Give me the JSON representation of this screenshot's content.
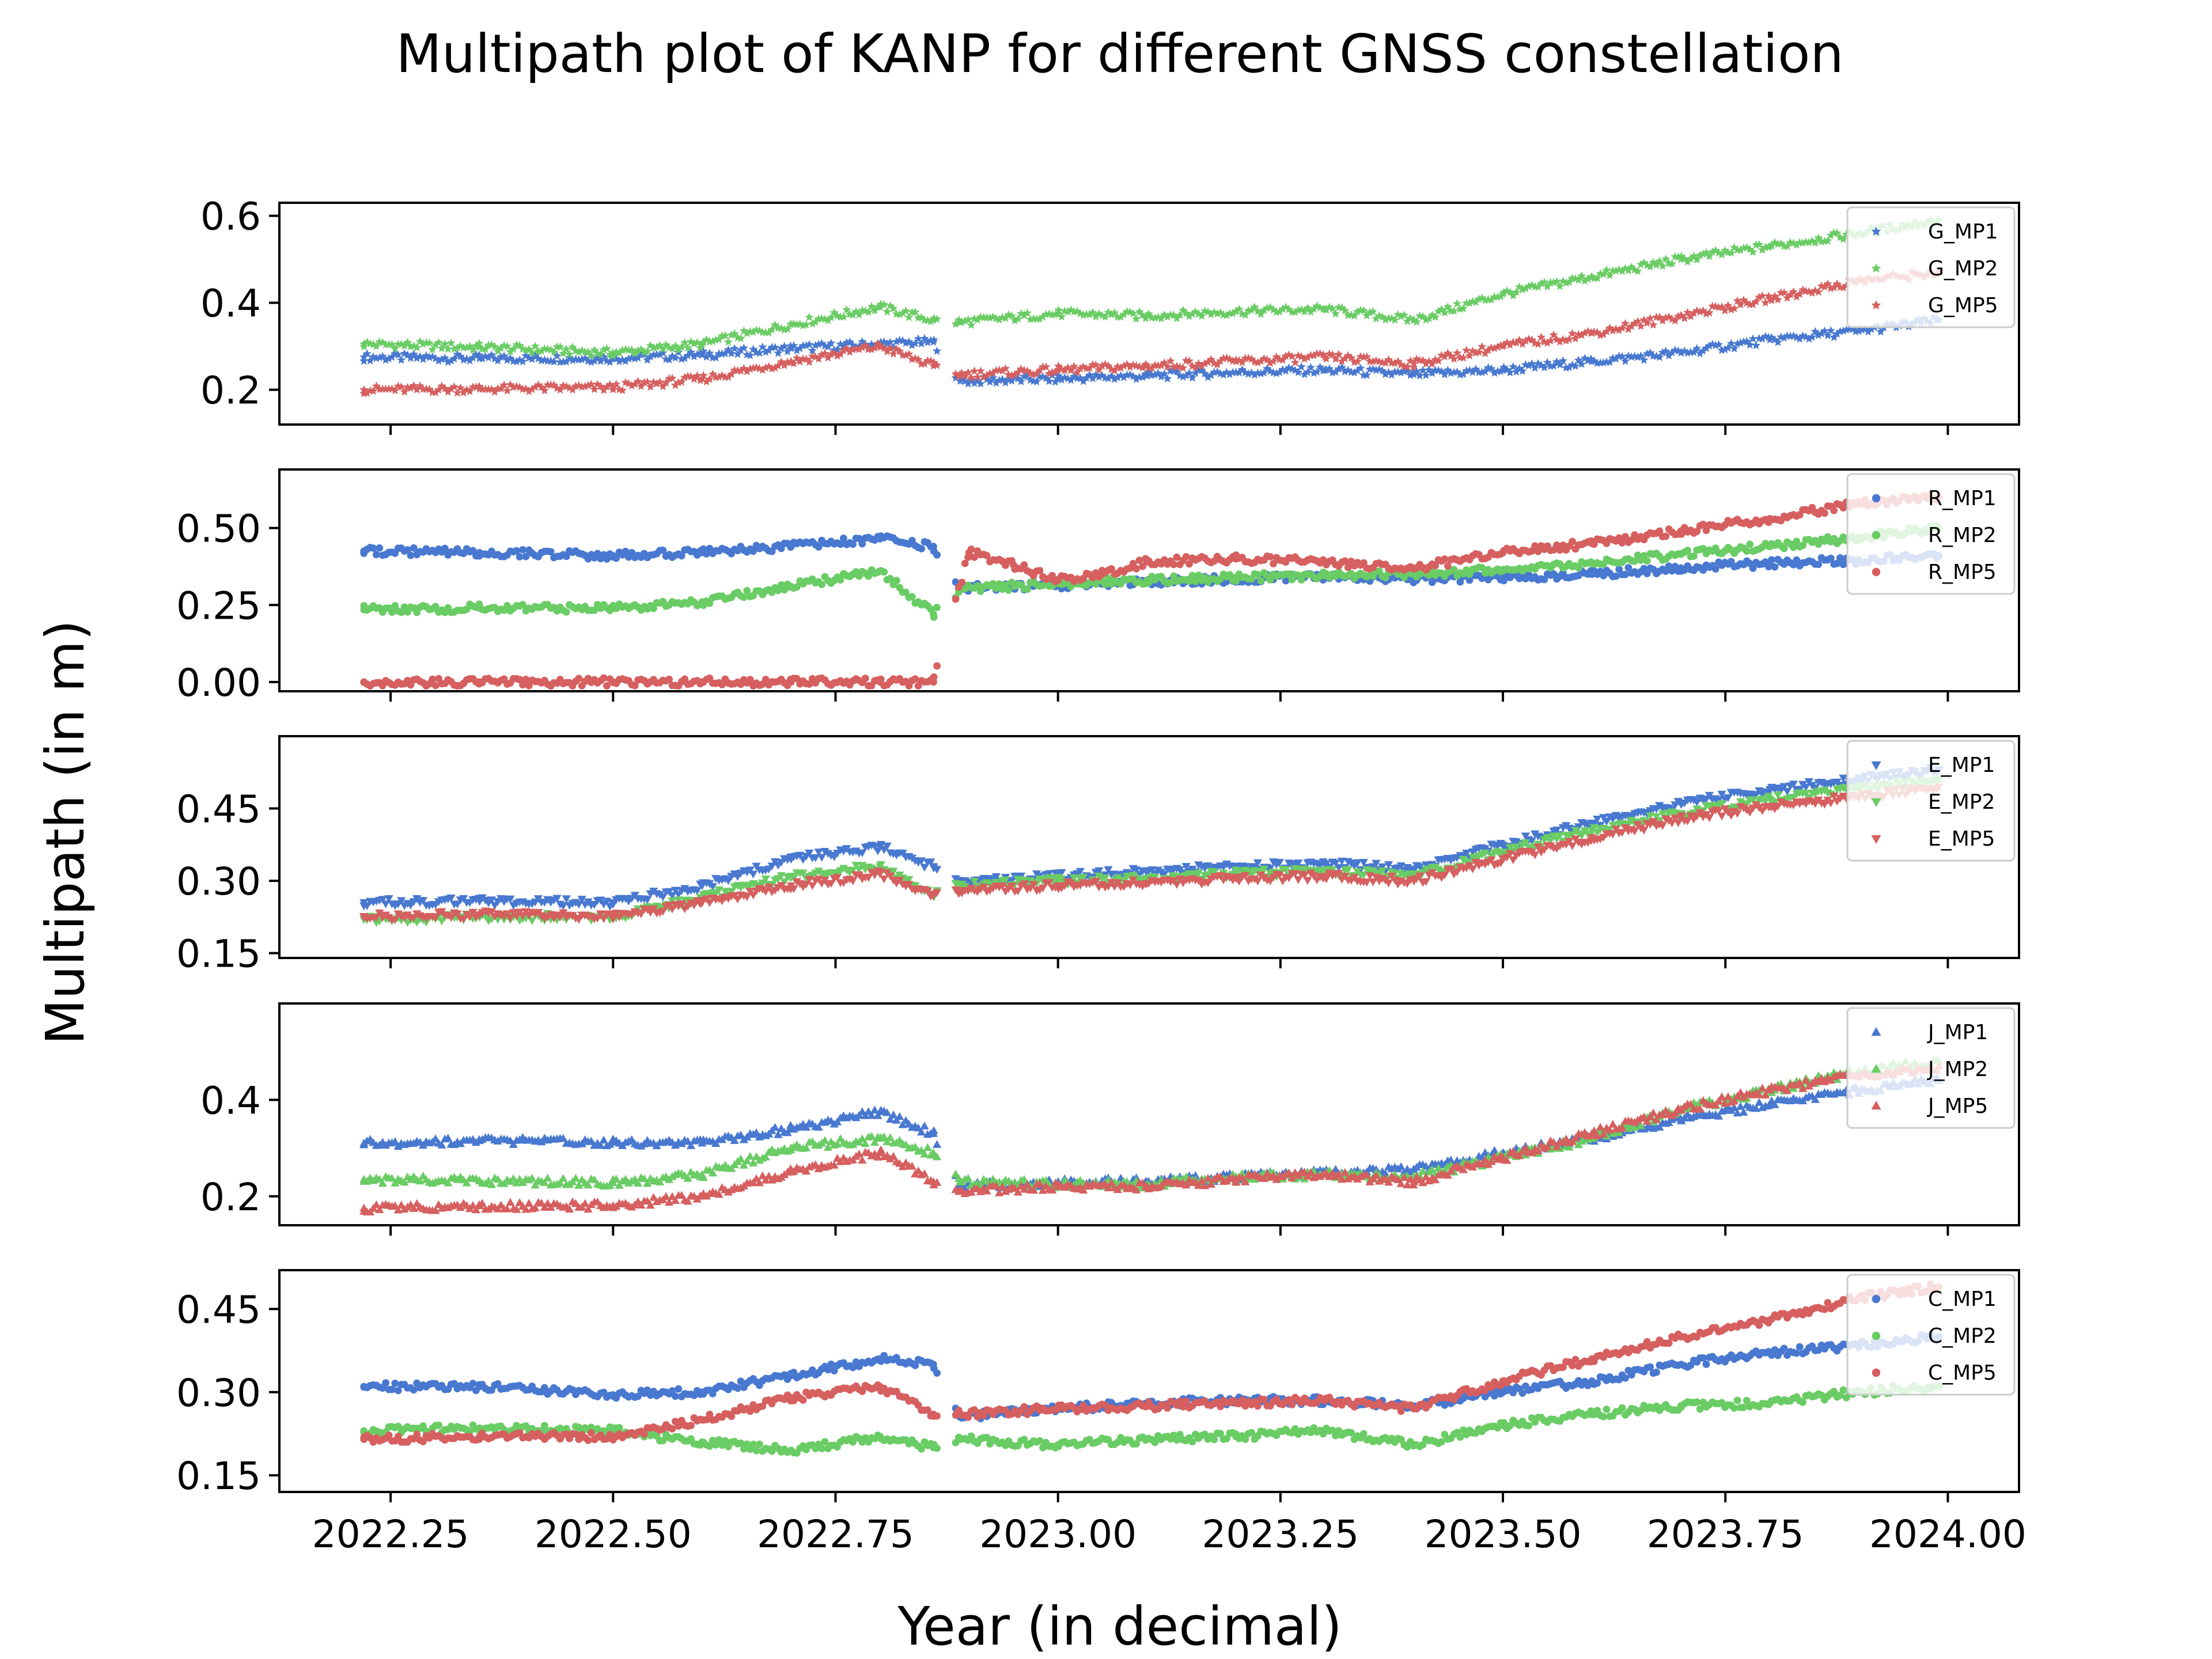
{
  "figure": {
    "title": "Multipath plot of KANP for different GNSS constellation",
    "xlabel": "Year (in decimal)",
    "ylabel": "Multipath (in m)",
    "xlim": [
      2022.125,
      2024.08
    ],
    "xticks": [
      2022.25,
      2022.5,
      2022.75,
      2023.0,
      2023.25,
      2023.5,
      2023.75,
      2024.0
    ],
    "xtick_labels": [
      "2022.25",
      "2022.50",
      "2022.75",
      "2023.00",
      "2023.25",
      "2023.50",
      "2023.75",
      "2024.00"
    ]
  },
  "colors": {
    "mp1": "#4878d0",
    "mp2": "#6acc64",
    "mp5": "#d65f5f"
  },
  "chart_data": [
    {
      "type": "scatter",
      "constellation": "G",
      "marker": "star",
      "ylim": [
        0.12,
        0.63
      ],
      "yticks": [
        0.2,
        0.4,
        0.6
      ],
      "ytick_labels": [
        "0.2",
        "0.4",
        "0.6"
      ],
      "legend_position": "top-right",
      "series": [
        {
          "name": "G_MP1",
          "x": [
            2022.22,
            2022.35,
            2022.5,
            2022.6,
            2022.7,
            2022.8,
            2022.86,
            2022.89,
            2023.0,
            2023.1,
            2023.2,
            2023.3,
            2023.4,
            2023.5,
            2023.6,
            2023.7,
            2023.8,
            2023.9,
            2023.99
          ],
          "y": [
            0.275,
            0.272,
            0.272,
            0.28,
            0.295,
            0.305,
            0.31,
            0.22,
            0.225,
            0.232,
            0.24,
            0.245,
            0.235,
            0.245,
            0.265,
            0.285,
            0.315,
            0.335,
            0.36
          ]
        },
        {
          "name": "G_MP2",
          "x": [
            2022.22,
            2022.35,
            2022.5,
            2022.6,
            2022.7,
            2022.8,
            2022.86,
            2022.89,
            2023.0,
            2023.1,
            2023.2,
            2023.3,
            2023.4,
            2023.5,
            2023.6,
            2023.7,
            2023.8,
            2023.9,
            2023.99
          ],
          "y": [
            0.305,
            0.298,
            0.285,
            0.305,
            0.35,
            0.39,
            0.36,
            0.355,
            0.375,
            0.37,
            0.38,
            0.385,
            0.36,
            0.42,
            0.46,
            0.5,
            0.53,
            0.56,
            0.59
          ]
        },
        {
          "name": "G_MP5",
          "x": [
            2022.22,
            2022.35,
            2022.5,
            2022.6,
            2022.7,
            2022.8,
            2022.86,
            2022.89,
            2023.0,
            2023.1,
            2023.2,
            2023.3,
            2023.4,
            2023.5,
            2023.6,
            2023.7,
            2023.8,
            2023.9,
            2023.99
          ],
          "y": [
            0.2,
            0.202,
            0.205,
            0.225,
            0.265,
            0.3,
            0.255,
            0.235,
            0.245,
            0.255,
            0.265,
            0.275,
            0.26,
            0.3,
            0.33,
            0.37,
            0.41,
            0.45,
            0.47
          ]
        }
      ]
    },
    {
      "type": "scatter",
      "constellation": "R",
      "marker": "circle",
      "ylim": [
        -0.03,
        0.69
      ],
      "yticks": [
        0.0,
        0.25,
        0.5
      ],
      "ytick_labels": [
        "0.00",
        "0.25",
        "0.50"
      ],
      "legend_position": "top-right",
      "series": [
        {
          "name": "R_MP1",
          "x": [
            2022.22,
            2022.35,
            2022.5,
            2022.6,
            2022.7,
            2022.8,
            2022.86,
            2022.89,
            2023.0,
            2023.1,
            2023.2,
            2023.3,
            2023.4,
            2023.5,
            2023.6,
            2023.7,
            2023.8,
            2023.9,
            2023.99
          ],
          "y": [
            0.425,
            0.42,
            0.41,
            0.42,
            0.44,
            0.465,
            0.44,
            0.305,
            0.315,
            0.325,
            0.335,
            0.34,
            0.335,
            0.34,
            0.35,
            0.37,
            0.385,
            0.395,
            0.41
          ]
        },
        {
          "name": "R_MP2",
          "x": [
            2022.22,
            2022.35,
            2022.5,
            2022.6,
            2022.7,
            2022.8,
            2022.86,
            2022.89,
            2023.0,
            2023.1,
            2023.2,
            2023.3,
            2023.4,
            2023.5,
            2023.6,
            2023.7,
            2023.8,
            2023.9,
            2023.99
          ],
          "y": [
            0.235,
            0.24,
            0.24,
            0.26,
            0.31,
            0.36,
            0.22,
            0.3,
            0.32,
            0.33,
            0.34,
            0.345,
            0.35,
            0.365,
            0.385,
            0.415,
            0.44,
            0.47,
            0.5
          ]
        },
        {
          "name": "R_MP5",
          "x": [
            2022.22,
            2022.35,
            2022.5,
            2022.6,
            2022.7,
            2022.8,
            2022.86,
            2022.9,
            2022.95,
            2023.0,
            2023.05,
            2023.1,
            2023.2,
            2023.3,
            2023.4,
            2023.5,
            2023.6,
            2023.7,
            2023.8,
            2023.9,
            2023.99
          ],
          "y": [
            0.0,
            0.0,
            0.0,
            0.0,
            0.0,
            0.0,
            0.0,
            0.42,
            0.38,
            0.33,
            0.35,
            0.39,
            0.4,
            0.39,
            0.37,
            0.42,
            0.45,
            0.49,
            0.53,
            0.58,
            0.6
          ]
        }
      ]
    },
    {
      "type": "scatter",
      "constellation": "E",
      "marker": "triangle-down",
      "ylim": [
        0.14,
        0.6
      ],
      "yticks": [
        0.15,
        0.3,
        0.45
      ],
      "ytick_labels": [
        "0.15",
        "0.30",
        "0.45"
      ],
      "legend_position": "top-right",
      "series": [
        {
          "name": "E_MP1",
          "x": [
            2022.22,
            2022.35,
            2022.5,
            2022.6,
            2022.7,
            2022.8,
            2022.86,
            2022.89,
            2023.0,
            2023.1,
            2023.2,
            2023.3,
            2023.4,
            2023.5,
            2023.6,
            2023.7,
            2023.8,
            2023.9,
            2023.99
          ],
          "y": [
            0.255,
            0.258,
            0.255,
            0.29,
            0.345,
            0.37,
            0.33,
            0.3,
            0.31,
            0.32,
            0.33,
            0.335,
            0.325,
            0.375,
            0.42,
            0.46,
            0.49,
            0.51,
            0.53
          ]
        },
        {
          "name": "E_MP2",
          "x": [
            2022.22,
            2022.35,
            2022.5,
            2022.6,
            2022.7,
            2022.8,
            2022.86,
            2022.89,
            2023.0,
            2023.1,
            2023.2,
            2023.3,
            2023.4,
            2023.5,
            2023.6,
            2023.7,
            2023.8,
            2023.9,
            2023.99
          ],
          "y": [
            0.22,
            0.225,
            0.225,
            0.265,
            0.31,
            0.33,
            0.27,
            0.29,
            0.3,
            0.305,
            0.315,
            0.32,
            0.31,
            0.36,
            0.405,
            0.44,
            0.47,
            0.49,
            0.51
          ]
        },
        {
          "name": "E_MP5",
          "x": [
            2022.22,
            2022.35,
            2022.5,
            2022.6,
            2022.7,
            2022.8,
            2022.86,
            2022.89,
            2023.0,
            2023.1,
            2023.2,
            2023.3,
            2023.4,
            2023.5,
            2023.6,
            2023.7,
            2023.8,
            2023.9,
            2023.99
          ],
          "y": [
            0.225,
            0.23,
            0.228,
            0.255,
            0.29,
            0.315,
            0.27,
            0.28,
            0.29,
            0.295,
            0.305,
            0.31,
            0.3,
            0.345,
            0.39,
            0.43,
            0.455,
            0.475,
            0.495
          ]
        }
      ]
    },
    {
      "type": "scatter",
      "constellation": "J",
      "marker": "triangle-up",
      "ylim": [
        0.14,
        0.6
      ],
      "yticks": [
        0.2,
        0.4
      ],
      "ytick_labels": [
        "0.2",
        "0.4"
      ],
      "legend_position": "top-right",
      "series": [
        {
          "name": "J_MP1",
          "x": [
            2022.22,
            2022.35,
            2022.5,
            2022.6,
            2022.7,
            2022.8,
            2022.86,
            2022.89,
            2023.0,
            2023.1,
            2023.2,
            2023.3,
            2023.4,
            2023.5,
            2023.6,
            2023.7,
            2023.8,
            2023.9,
            2023.99
          ],
          "y": [
            0.31,
            0.315,
            0.312,
            0.31,
            0.34,
            0.375,
            0.33,
            0.22,
            0.23,
            0.23,
            0.24,
            0.25,
            0.255,
            0.29,
            0.32,
            0.36,
            0.39,
            0.42,
            0.44
          ]
        },
        {
          "name": "J_MP2",
          "x": [
            2022.22,
            2022.35,
            2022.5,
            2022.6,
            2022.7,
            2022.8,
            2022.86,
            2022.89,
            2023.0,
            2023.1,
            2023.2,
            2023.3,
            2023.4,
            2023.5,
            2023.6,
            2023.7,
            2023.8,
            2023.9,
            2023.99
          ],
          "y": [
            0.235,
            0.232,
            0.228,
            0.245,
            0.3,
            0.32,
            0.29,
            0.23,
            0.225,
            0.225,
            0.24,
            0.245,
            0.24,
            0.28,
            0.32,
            0.38,
            0.42,
            0.46,
            0.48
          ]
        },
        {
          "name": "J_MP5",
          "x": [
            2022.22,
            2022.35,
            2022.5,
            2022.6,
            2022.7,
            2022.8,
            2022.86,
            2022.89,
            2023.0,
            2023.1,
            2023.2,
            2023.3,
            2023.4,
            2023.5,
            2023.6,
            2023.7,
            2023.8,
            2023.9,
            2023.99
          ],
          "y": [
            0.175,
            0.18,
            0.18,
            0.2,
            0.25,
            0.29,
            0.23,
            0.21,
            0.22,
            0.22,
            0.235,
            0.245,
            0.23,
            0.28,
            0.33,
            0.38,
            0.42,
            0.45,
            0.47
          ]
        }
      ]
    },
    {
      "type": "scatter",
      "constellation": "C",
      "marker": "circle",
      "ylim": [
        0.12,
        0.52
      ],
      "yticks": [
        0.15,
        0.3,
        0.45
      ],
      "ytick_labels": [
        "0.15",
        "0.30",
        "0.45"
      ],
      "legend_position": "top-right",
      "series": [
        {
          "name": "C_MP1",
          "x": [
            2022.22,
            2022.35,
            2022.5,
            2022.6,
            2022.7,
            2022.8,
            2022.86,
            2022.89,
            2023.0,
            2023.1,
            2023.2,
            2023.3,
            2023.4,
            2023.5,
            2023.6,
            2023.7,
            2023.8,
            2023.9,
            2023.99
          ],
          "y": [
            0.31,
            0.31,
            0.295,
            0.3,
            0.33,
            0.36,
            0.35,
            0.255,
            0.27,
            0.28,
            0.285,
            0.285,
            0.275,
            0.3,
            0.32,
            0.35,
            0.37,
            0.385,
            0.4
          ]
        },
        {
          "name": "C_MP2",
          "x": [
            2022.22,
            2022.35,
            2022.5,
            2022.6,
            2022.7,
            2022.8,
            2022.86,
            2022.89,
            2023.0,
            2023.1,
            2023.2,
            2023.3,
            2023.4,
            2023.5,
            2023.6,
            2023.7,
            2023.8,
            2023.9,
            2023.99
          ],
          "y": [
            0.23,
            0.235,
            0.23,
            0.21,
            0.195,
            0.22,
            0.2,
            0.215,
            0.205,
            0.215,
            0.22,
            0.23,
            0.205,
            0.24,
            0.26,
            0.275,
            0.28,
            0.3,
            0.31
          ]
        },
        {
          "name": "C_MP5",
          "x": [
            2022.22,
            2022.35,
            2022.5,
            2022.6,
            2022.7,
            2022.8,
            2022.86,
            2022.89,
            2023.0,
            2023.1,
            2023.2,
            2023.3,
            2023.4,
            2023.5,
            2023.6,
            2023.7,
            2023.8,
            2023.9,
            2023.99
          ],
          "y": [
            0.215,
            0.22,
            0.22,
            0.25,
            0.29,
            0.31,
            0.26,
            0.26,
            0.27,
            0.275,
            0.28,
            0.285,
            0.27,
            0.32,
            0.36,
            0.4,
            0.43,
            0.47,
            0.49
          ]
        }
      ]
    }
  ]
}
